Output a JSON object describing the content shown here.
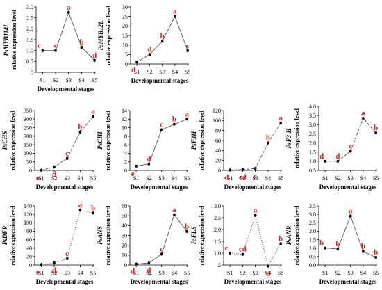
{
  "figure": {
    "colors": {
      "axis": "#000000",
      "line": "#555555",
      "letters": "#e21b1b"
    }
  },
  "chart_data": [
    {
      "id": "PsMYB114L",
      "type": "line",
      "title": "",
      "line_style": "solid",
      "ylabel_gene": "PsMYB114L",
      "ylabel": "relative expression level",
      "xlabel": "Developmental stages",
      "categories": [
        "S1",
        "S2",
        "S3",
        "S4",
        "S5"
      ],
      "values": [
        1.0,
        1.0,
        2.75,
        1.15,
        0.55
      ],
      "letters": [
        "c",
        "c",
        "a",
        "b",
        "d"
      ],
      "ylim": [
        0,
        3
      ],
      "yticks": [
        "0",
        "0.5",
        "1.0",
        "1.5",
        "2.0",
        "2.5",
        "3.0"
      ]
    },
    {
      "id": "PsMYB12L",
      "type": "line",
      "title": "",
      "line_style": "solid",
      "ylabel_gene": "PsMYB12L",
      "ylabel": "relative expression level",
      "xlabel": "Developmental stages",
      "categories": [
        "S1",
        "S2",
        "S3",
        "S4",
        "S5"
      ],
      "values": [
        1,
        5,
        12,
        25,
        7
      ],
      "letters": [
        "d",
        "d",
        "b",
        "a",
        "c"
      ],
      "ylim": [
        0,
        30
      ],
      "yticks": [
        "0",
        "5",
        "10",
        "15",
        "20",
        "25",
        "30"
      ]
    },
    {
      "id": "PsCHS",
      "type": "line",
      "title": "",
      "line_style": "dashed",
      "ylabel_gene": "PsCHS",
      "ylabel": "relative expression level",
      "xlabel": "Developmental stages",
      "categories": [
        "S1",
        "S2",
        "S3",
        "S4",
        "S5"
      ],
      "values": [
        1,
        20,
        70,
        225,
        315
      ],
      "letters": [
        "e",
        "d",
        "c",
        "b",
        "a"
      ],
      "ylim": [
        0,
        350
      ],
      "yticks": [
        "0",
        "50",
        "100",
        "150",
        "200",
        "250",
        "300",
        "350"
      ]
    },
    {
      "id": "PsCHI",
      "type": "line",
      "title": "",
      "line_style": "solid",
      "ylabel_gene": "PsCHI",
      "ylabel": "relative expression level",
      "xlabel": "Developmental stages",
      "categories": [
        "S1",
        "S2",
        "S3",
        "S4",
        "S5"
      ],
      "values": [
        1,
        1.5,
        9.5,
        10.8,
        12
      ],
      "letters": [
        "e",
        "d",
        "c",
        "b",
        "a"
      ],
      "ylim": [
        0,
        14
      ],
      "yticks": [
        "0",
        "2",
        "4",
        "6",
        "8",
        "10",
        "12",
        "14"
      ]
    },
    {
      "id": "PsF3H",
      "type": "line",
      "title": "",
      "line_style": "dashed",
      "ylabel_gene": "PsF3H",
      "ylabel": "relative expression level",
      "xlabel": "Developmental stages",
      "categories": [
        "S1",
        "S2",
        "S3",
        "S4",
        "S5"
      ],
      "values": [
        1,
        1.5,
        4,
        55,
        95
      ],
      "letters": [
        "d",
        "cd",
        "c",
        "b",
        "a"
      ],
      "ylim": [
        0,
        120
      ],
      "yticks": [
        "0",
        "20",
        "40",
        "60",
        "80",
        "100",
        "120"
      ]
    },
    {
      "id": "PsF3'H",
      "type": "line",
      "title": "",
      "line_style": "dashed",
      "ylabel_gene": "PsF3'H",
      "ylabel": "relative expression level",
      "xlabel": "Developmental stages",
      "categories": [
        "S1",
        "S2",
        "S3",
        "S4",
        "S5"
      ],
      "values": [
        1,
        1,
        1.55,
        3.35,
        2.55
      ],
      "letters": [
        "d",
        "d",
        "c",
        "a",
        "b"
      ],
      "ylim": [
        0.5,
        4
      ],
      "yticks": [
        "0.5",
        "1.0",
        "1.5",
        "2.0",
        "2.5",
        "3.0",
        "3.5",
        "4.0"
      ]
    },
    {
      "id": "PsDFR",
      "type": "line",
      "title": "",
      "line_style": "dotted",
      "ylabel_gene": "PsDFR",
      "ylabel": "relative expression level",
      "xlabel": "Developmental stages",
      "categories": [
        "S1",
        "S2",
        "S3",
        "S4",
        "S5"
      ],
      "values": [
        1,
        5,
        15,
        130,
        123
      ],
      "letters": [
        "e",
        "d",
        "c",
        "a",
        "b"
      ],
      "ylim": [
        0,
        140
      ],
      "yticks": [
        "0",
        "20",
        "40",
        "60",
        "80",
        "100",
        "120",
        "140"
      ]
    },
    {
      "id": "PsANS",
      "type": "line",
      "title": "",
      "line_style": "solid",
      "ylabel_gene": "PsANS",
      "ylabel": "relative expression level",
      "xlabel": "Developmental stages",
      "categories": [
        "S1",
        "S2",
        "S3",
        "S4",
        "S5"
      ],
      "values": [
        1,
        2,
        11,
        51,
        34
      ],
      "letters": [
        "d",
        "d",
        "c",
        "a",
        "b"
      ],
      "ylim": [
        0,
        60
      ],
      "yticks": [
        "0",
        "10",
        "20",
        "30",
        "40",
        "50",
        "60"
      ]
    },
    {
      "id": "PsFLS",
      "type": "line",
      "title": "",
      "line_style": "dotted",
      "ylabel_gene": "PsFLS",
      "ylabel": "relative expression level",
      "xlabel": "Developmental stages",
      "categories": [
        "S1",
        "S2",
        "S3",
        "S4",
        "S5"
      ],
      "values": [
        1.0,
        0.95,
        2.6,
        0.45,
        1.4
      ],
      "letters": [
        "c",
        "cd",
        "a",
        "d",
        "b"
      ],
      "ylim": [
        0.5,
        3
      ],
      "yticks": [
        ".5",
        "1.0",
        "1.5",
        "2.0",
        "2.5",
        "3.0"
      ]
    },
    {
      "id": "PsANR",
      "type": "line",
      "title": "",
      "line_style": "solid",
      "ylabel_gene": "PsANR",
      "ylabel": "relative expression level",
      "xlabel": "Developmental stages",
      "categories": [
        "S1",
        "S2",
        "S3",
        "S4",
        "S5"
      ],
      "values": [
        1.0,
        0.95,
        2.9,
        0.8,
        0.45
      ],
      "letters": [
        "b",
        "b",
        "a",
        "b",
        "b"
      ],
      "ylim": [
        0,
        3.5
      ],
      "yticks": [
        "0.0",
        "0.5",
        "1.0",
        "1.5",
        "2.0",
        "2.5",
        "3.0",
        "3.5"
      ]
    }
  ]
}
